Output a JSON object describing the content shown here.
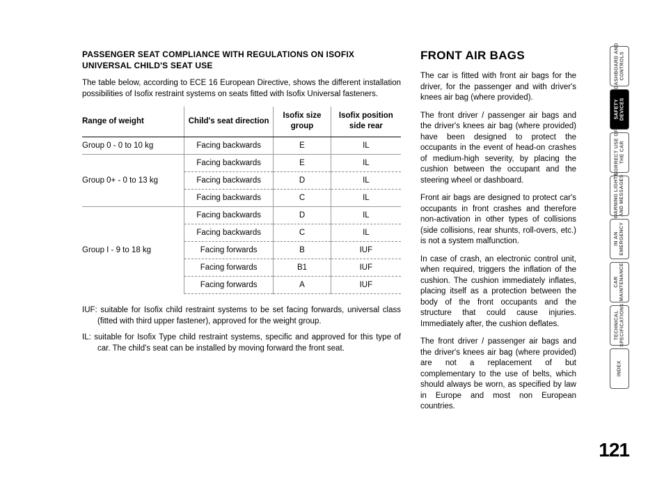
{
  "left": {
    "subtitle": "PASSENGER SEAT COMPLIANCE WITH REGULATIONS ON ISOFIX UNIVERSAL CHILD'S SEAT USE",
    "intro": "The table below, according to ECE 16 European Directive, shows the different installation possibilities of Isofix restraint systems on seats fitted with Isofix Universal fasteners.",
    "table": {
      "headers": [
        "Range of weight",
        "Child's seat direction",
        "Isofix size group",
        "Isofix  position side rear"
      ],
      "groups": [
        {
          "label": "Group 0 - 0 to 10 kg",
          "rows": [
            {
              "dir": "Facing backwards",
              "size": "E",
              "pos": "IL"
            }
          ]
        },
        {
          "label": "Group 0+ - 0 to 13 kg",
          "rows": [
            {
              "dir": "Facing backwards",
              "size": "E",
              "pos": "IL"
            },
            {
              "dir": "Facing backwards",
              "size": "D",
              "pos": "IL"
            },
            {
              "dir": "Facing backwards",
              "size": "C",
              "pos": "IL"
            }
          ]
        },
        {
          "label": "Group I - 9 to 18 kg",
          "rows": [
            {
              "dir": "Facing backwards",
              "size": "D",
              "pos": "IL"
            },
            {
              "dir": "Facing backwards",
              "size": "C",
              "pos": "IL"
            },
            {
              "dir": "Facing forwards",
              "size": "B",
              "pos": "IUF"
            },
            {
              "dir": "Facing forwards",
              "size": "B1",
              "pos": "IUF"
            },
            {
              "dir": "Facing forwards",
              "size": "A",
              "pos": "IUF"
            }
          ]
        }
      ]
    },
    "note_iuf": "IUF: suitable for Isofix child restraint systems to be set facing forwards, universal class  (fitted with third upper fastener), approved for the weight group.",
    "note_il": "IL: suitable for Isofix Type child restraint systems, specific and approved for this type of car. The child's seat can be installed by moving forward the front seat."
  },
  "right": {
    "title": "FRONT AIR BAGS",
    "paras": [
      "The car is fitted with front air bags for the driver, for the passenger and with driver's knees air bag (where provided).",
      "The front driver / passenger air bags and the driver's knees air bag (where provided) have been designed to protect the occupants in the event of head-on crashes of medium-high severity, by placing the cushion between the occupant and the steering wheel or dashboard.",
      "Front air bags are designed to protect car's occupants in front crashes and therefore non-activation in other types of collisions (side collisions, rear shunts, roll-overs, etc.) is not a system malfunction.",
      "In case of crash, an electronic control unit, when required, triggers the inflation of the cushion. The cushion immediately inflates, placing itself as a protection between the body of the front occupants and the structure that could cause injuries. Immediately after, the cushion deflates.",
      "The front driver / passenger air bags and the driver's knees air bag (where provided) are not a replacement of but complementary to the use of belts, which should always be worn, as specified by law in Europe and most non European countries."
    ]
  },
  "tabs": [
    {
      "label": "DASHBOARD AND CONTROLS",
      "active": false
    },
    {
      "label": "SAFETY DEVICES",
      "active": true
    },
    {
      "label": "CORRECT USE OF THE CAR",
      "active": false
    },
    {
      "label": "WARNING LIGHTS AND MESSAGES",
      "active": false
    },
    {
      "label": "IN AN EMERGENCY",
      "active": false
    },
    {
      "label": "CAR MAINTENANCE",
      "active": false
    },
    {
      "label": "TECHNICAL SPECIFICATIONS",
      "active": false
    },
    {
      "label": "INDEX",
      "active": false
    }
  ],
  "page_number": "121",
  "colors": {
    "text": "#000000",
    "muted": "#555555",
    "rule": "#999999",
    "dash": "#888888",
    "bg": "#ffffff"
  }
}
